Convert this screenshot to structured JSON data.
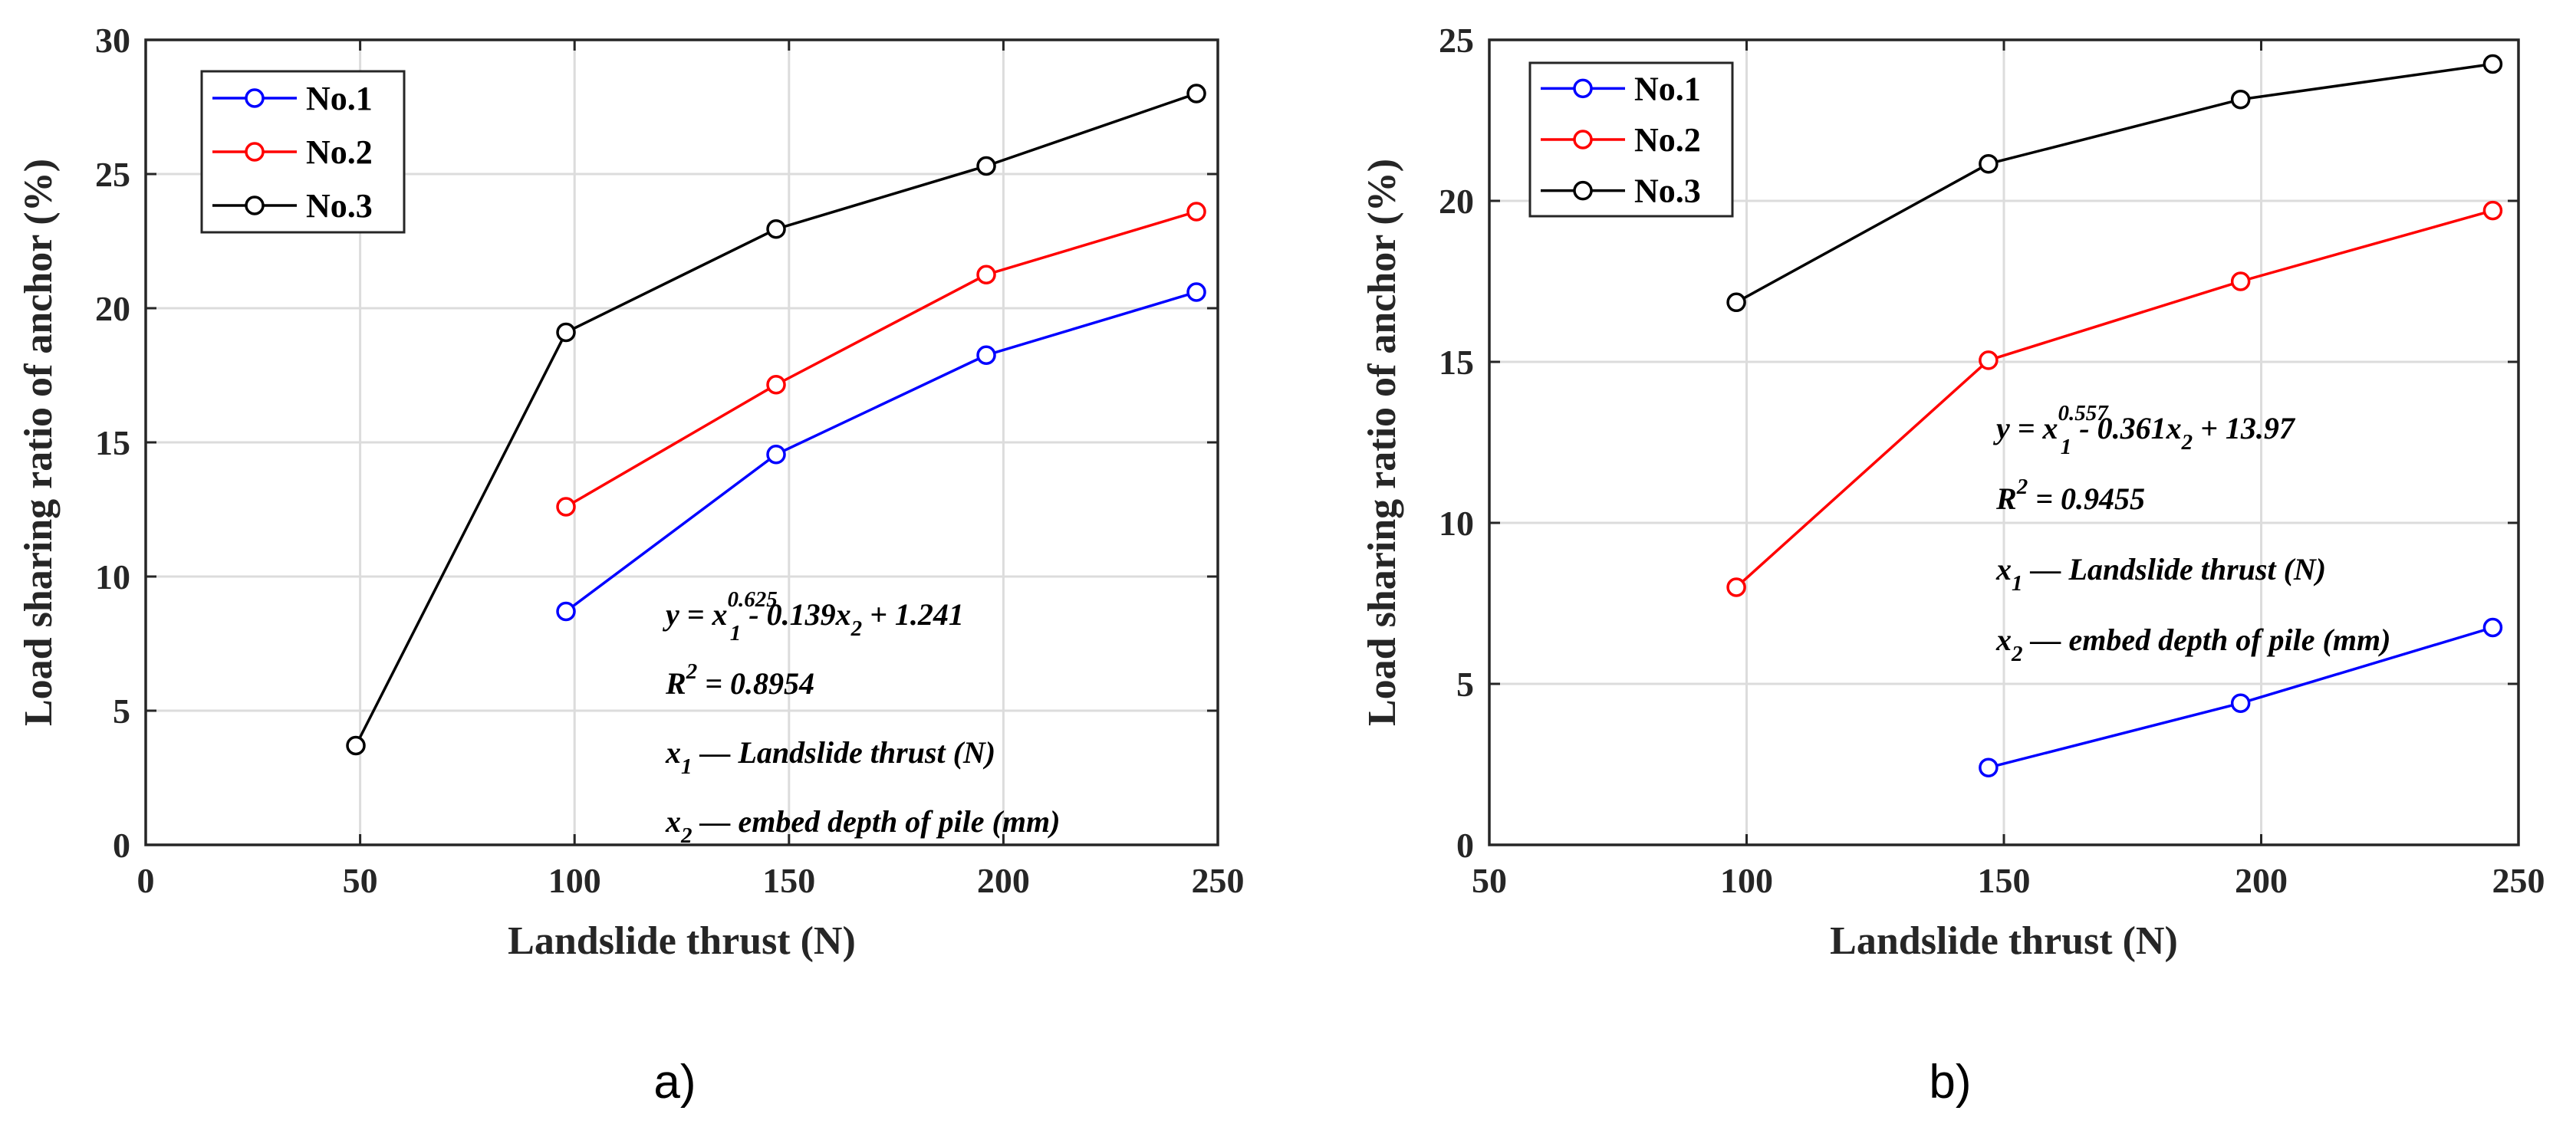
{
  "chart_data": [
    {
      "type": "line",
      "panel_label": "a)",
      "xlabel": "Landslide thrust (N)",
      "ylabel": "Load sharing ratio of anchor (%)",
      "xlim": [
        0,
        250
      ],
      "ylim": [
        0,
        30
      ],
      "xticks": [
        0,
        50,
        100,
        150,
        200,
        250
      ],
      "yticks": [
        0,
        5,
        10,
        15,
        20,
        25,
        30
      ],
      "grid": true,
      "legend_position": "top-left",
      "series": [
        {
          "name": "No.1",
          "color": "#0000ff",
          "x": [
            98,
            147,
            196,
            245
          ],
          "y": [
            8.7,
            14.55,
            18.25,
            20.6
          ]
        },
        {
          "name": "No.2",
          "color": "#ff0000",
          "x": [
            98,
            147,
            196,
            245
          ],
          "y": [
            12.6,
            17.15,
            21.25,
            23.6
          ]
        },
        {
          "name": "No.3",
          "color": "#000000",
          "x": [
            49,
            98,
            147,
            196,
            245
          ],
          "y": [
            3.7,
            19.1,
            22.95,
            25.3,
            28.0
          ]
        }
      ],
      "annotation": {
        "eq_y": "y = x",
        "eq_sub1": "1",
        "eq_exp": "0.625",
        "eq_rest1": " - 0.139x",
        "eq_sub2": "2",
        "eq_rest2": " + 1.241",
        "r2_lead": "R",
        "r2_exp": "2",
        "r2_rest": " = 0.8954",
        "x1_lead": "x",
        "x1_sub": "1",
        "x1_desc": " — Landslide thrust (N)",
        "x2_lead": "x",
        "x2_sub": "2",
        "x2_desc": " — embed depth of pile (mm)"
      }
    },
    {
      "type": "line",
      "panel_label": "b)",
      "xlabel": "Landslide thrust (N)",
      "ylabel": "Load sharing ratio of anchor (%)",
      "xlim": [
        50,
        250
      ],
      "ylim": [
        0,
        25
      ],
      "xticks": [
        50,
        100,
        150,
        200,
        250
      ],
      "yticks": [
        0,
        5,
        10,
        15,
        20,
        25
      ],
      "grid": true,
      "legend_position": "top-left",
      "series": [
        {
          "name": "No.1",
          "color": "#0000ff",
          "x": [
            147,
            196,
            245
          ],
          "y": [
            2.4,
            4.4,
            6.75
          ]
        },
        {
          "name": "No.2",
          "color": "#ff0000",
          "x": [
            98,
            147,
            196,
            245
          ],
          "y": [
            8.0,
            15.05,
            17.5,
            19.7
          ]
        },
        {
          "name": "No.3",
          "color": "#000000",
          "x": [
            98,
            147,
            196,
            245
          ],
          "y": [
            16.85,
            21.15,
            23.15,
            24.25
          ]
        }
      ],
      "annotation": {
        "eq_y": "y = x",
        "eq_sub1": "1",
        "eq_exp": "0.557",
        "eq_rest1": " - 0.361x",
        "eq_sub2": "2",
        "eq_rest2": " + 13.97",
        "r2_lead": "R",
        "r2_exp": "2",
        "r2_rest": " = 0.9455",
        "x1_lead": "x",
        "x1_sub": "1",
        "x1_desc": " — Landslide thrust (N)",
        "x2_lead": "x",
        "x2_sub": "2",
        "x2_desc": " — embed depth of pile (mm)"
      }
    }
  ]
}
